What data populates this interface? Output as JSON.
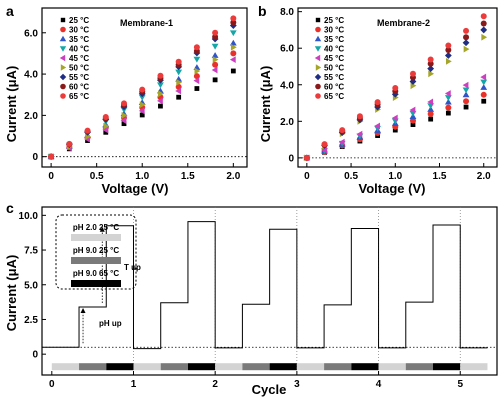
{
  "colors": {
    "25": "#000000",
    "30": "#e8312a",
    "35": "#2f55c8",
    "40": "#14a7a7",
    "45": "#cc3fbf",
    "50": "#a5a52a",
    "55": "#1f2d83",
    "60": "#8a1a1a",
    "65": "#ec3b3b",
    "ph20_25": "#d3d3d3",
    "ph90_25": "#7a7a7a",
    "ph90_65": "#000000"
  },
  "chart_data": [
    {
      "type": "scatter",
      "panel": "a",
      "title": "Membrane-1",
      "xlabel": "Voltage (V)",
      "ylabel": "Current (μA)",
      "xlim": [
        -0.1,
        2.15
      ],
      "ylim": [
        -0.5,
        7.2
      ],
      "xticks": [
        0,
        0.5,
        1.0,
        1.5,
        2.0
      ],
      "xtick_labels": [
        "0",
        "0.5",
        "1.0",
        "1.5",
        "2.0"
      ],
      "yticks": [
        0,
        2,
        4,
        6
      ],
      "ytick_labels": [
        "0",
        "2.0",
        "4.0",
        "6.0"
      ],
      "x": [
        0,
        0.2,
        0.4,
        0.6,
        0.8,
        1.0,
        1.2,
        1.4,
        1.6,
        1.8,
        2.0
      ],
      "series": [
        {
          "name": "25 °C",
          "marker": "square",
          "color_key": "25",
          "values": [
            0,
            0.38,
            0.78,
            1.18,
            1.6,
            2.02,
            2.45,
            2.88,
            3.3,
            3.72,
            4.15
          ]
        },
        {
          "name": "30 °C",
          "marker": "circle",
          "color_key": "30",
          "values": [
            0,
            0.45,
            0.92,
            1.4,
            1.88,
            2.38,
            2.88,
            3.38,
            3.9,
            4.45,
            5.0
          ]
        },
        {
          "name": "35 °C",
          "marker": "triangle-up",
          "color_key": "35",
          "values": [
            0,
            0.5,
            1.02,
            1.55,
            2.08,
            2.62,
            3.18,
            3.75,
            4.32,
            4.9,
            5.5
          ]
        },
        {
          "name": "40 °C",
          "marker": "triangle-down",
          "color_key": "40",
          "values": [
            0,
            0.55,
            1.12,
            1.7,
            2.28,
            2.88,
            3.48,
            4.1,
            4.72,
            5.35,
            6.0
          ]
        },
        {
          "name": "45 °C",
          "marker": "triangle-left",
          "color_key": "45",
          "values": [
            0,
            0.42,
            0.85,
            1.3,
            1.75,
            2.22,
            2.7,
            3.18,
            3.68,
            4.2,
            4.7
          ]
        },
        {
          "name": "50 °C",
          "marker": "triangle-right",
          "color_key": "50",
          "values": [
            0,
            0.48,
            0.98,
            1.48,
            2.0,
            2.52,
            3.05,
            3.6,
            4.15,
            4.7,
            5.3
          ]
        },
        {
          "name": "55 °C",
          "marker": "diamond",
          "color_key": "55",
          "values": [
            0,
            0.58,
            1.18,
            1.8,
            2.42,
            3.05,
            3.7,
            4.35,
            5.02,
            5.7,
            6.35
          ]
        },
        {
          "name": "60 °C",
          "marker": "circle",
          "color_key": "60",
          "values": [
            0,
            0.6,
            1.22,
            1.85,
            2.5,
            3.15,
            3.8,
            4.45,
            5.12,
            5.8,
            6.5
          ]
        },
        {
          "name": "65 °C",
          "marker": "circle",
          "color_key": "65",
          "values": [
            0,
            0.62,
            1.26,
            1.92,
            2.58,
            3.25,
            3.92,
            4.6,
            5.3,
            6.0,
            6.7
          ]
        }
      ]
    },
    {
      "type": "scatter",
      "panel": "b",
      "title": "Membrane-2",
      "xlabel": "Voltage (V)",
      "ylabel": "Current (μA)",
      "xlim": [
        -0.1,
        2.15
      ],
      "ylim": [
        -0.5,
        8.2
      ],
      "xticks": [
        0,
        0.5,
        1.0,
        1.5,
        2.0
      ],
      "xtick_labels": [
        "0",
        "0.5",
        "1.0",
        "1.5",
        "2.0"
      ],
      "yticks": [
        0,
        2,
        4,
        6,
        8
      ],
      "ytick_labels": [
        "0",
        "2.0",
        "4.0",
        "6.0",
        "8.0"
      ],
      "x": [
        0,
        0.2,
        0.4,
        0.6,
        0.8,
        1.0,
        1.2,
        1.4,
        1.6,
        1.8,
        2.0
      ],
      "series": [
        {
          "name": "25 °C",
          "marker": "square",
          "color_key": "25",
          "values": [
            0,
            0.3,
            0.62,
            0.92,
            1.22,
            1.52,
            1.82,
            2.12,
            2.45,
            2.78,
            3.1
          ]
        },
        {
          "name": "30 °C",
          "marker": "circle",
          "color_key": "30",
          "values": [
            0,
            0.33,
            0.68,
            1.02,
            1.36,
            1.7,
            2.04,
            2.4,
            2.75,
            3.1,
            3.45
          ]
        },
        {
          "name": "35 °C",
          "marker": "triangle-up",
          "color_key": "35",
          "values": [
            0,
            0.36,
            0.74,
            1.12,
            1.5,
            1.88,
            2.26,
            2.65,
            3.05,
            3.45,
            3.85
          ]
        },
        {
          "name": "40 °C",
          "marker": "triangle-down",
          "color_key": "40",
          "values": [
            0,
            0.4,
            0.8,
            1.2,
            1.62,
            2.02,
            2.44,
            2.86,
            3.3,
            3.72,
            4.15
          ]
        },
        {
          "name": "45 °C",
          "marker": "triangle-left",
          "color_key": "45",
          "values": [
            0,
            0.43,
            0.86,
            1.3,
            1.74,
            2.18,
            2.62,
            3.06,
            3.52,
            3.98,
            4.42
          ]
        },
        {
          "name": "50 °C",
          "marker": "triangle-right",
          "color_key": "50",
          "values": [
            0,
            0.65,
            1.32,
            2.0,
            2.65,
            3.3,
            3.95,
            4.6,
            5.28,
            5.95,
            6.6
          ]
        },
        {
          "name": "55 °C",
          "marker": "diamond",
          "color_key": "55",
          "values": [
            0,
            0.68,
            1.38,
            2.08,
            2.78,
            3.48,
            4.18,
            4.88,
            5.6,
            6.3,
            7.0
          ]
        },
        {
          "name": "60 °C",
          "marker": "circle",
          "color_key": "60",
          "values": [
            0,
            0.72,
            1.45,
            2.18,
            2.92,
            3.65,
            4.4,
            5.15,
            5.9,
            6.6,
            7.35
          ]
        },
        {
          "name": "65 °C",
          "marker": "circle",
          "color_key": "65",
          "values": [
            0,
            0.75,
            1.52,
            2.28,
            3.05,
            3.82,
            4.6,
            5.38,
            6.15,
            6.95,
            7.75
          ]
        }
      ]
    },
    {
      "type": "line",
      "panel": "c",
      "xlabel": "Cycle",
      "ylabel": "Current (μA)",
      "xlim": [
        -0.12,
        5.45
      ],
      "ylim": [
        -1.5,
        10.6
      ],
      "xticks": [
        0,
        1,
        2,
        3,
        4,
        5
      ],
      "xtick_labels": [
        "0",
        "1",
        "2",
        "3",
        "4",
        "5"
      ],
      "yticks": [
        0,
        2.5,
        5.0,
        7.5,
        10.0
      ],
      "ytick_labels": [
        "0",
        "2.5",
        "5.0",
        "7.5",
        "10.0"
      ],
      "baseline": 0.5,
      "cycle_steps": [
        {
          "ph20": 0.5,
          "ph90_25": 3.4,
          "ph90_65": 9.25
        },
        {
          "ph20": 0.4,
          "ph90_25": 3.7,
          "ph90_65": 9.55
        },
        {
          "ph20": 0.45,
          "ph90_25": 3.6,
          "ph90_65": 9.0
        },
        {
          "ph20": 0.45,
          "ph90_25": 3.55,
          "ph90_65": 9.05
        },
        {
          "ph20": 0.45,
          "ph90_25": 3.75,
          "ph90_65": 9.3
        }
      ],
      "final_level": 0.45,
      "legend": [
        {
          "label": "pH 2.0 25 °C",
          "color_key": "ph20_25"
        },
        {
          "label": "pH 9.0 25 °C",
          "color_key": "ph90_25"
        },
        {
          "label": "pH 9.0 65 °C",
          "color_key": "ph90_65"
        }
      ],
      "annotations": {
        "ph_up": "pH up",
        "t_up": "T up"
      }
    }
  ]
}
